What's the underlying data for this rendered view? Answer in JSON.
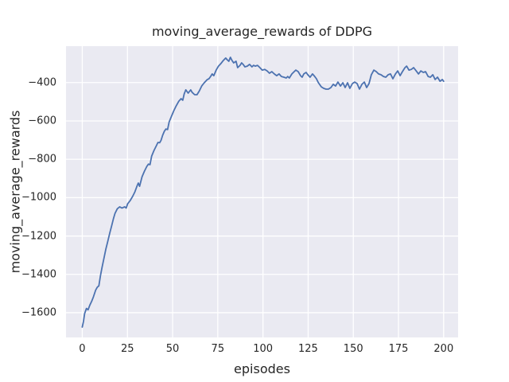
{
  "figure": {
    "background": "#ffffff"
  },
  "chart_data": {
    "type": "line",
    "title": "moving_average_rewards of DDPG",
    "xlabel": "episodes",
    "ylabel": "moving_average_rewards",
    "x_ticks": [
      0,
      25,
      50,
      75,
      100,
      125,
      150,
      175,
      200
    ],
    "y_ticks": [
      -400,
      -600,
      -800,
      -1000,
      -1200,
      -1400,
      -1600
    ],
    "xlim": [
      -9,
      208
    ],
    "ylim": [
      -1729,
      -210
    ],
    "grid": true,
    "legend": "none",
    "style": {
      "plot_bg": "#eaeaf2",
      "grid_color": "#ffffff",
      "line_color": "#4c72b0",
      "text_color": "#262626",
      "line_width": 1.8
    },
    "series": [
      {
        "name": "moving_average_rewards",
        "points": [
          [
            0,
            -1675
          ],
          [
            0.7,
            -1645
          ],
          [
            1.3,
            -1605
          ],
          [
            2.3,
            -1578
          ],
          [
            3.2,
            -1585
          ],
          [
            4.2,
            -1560
          ],
          [
            5.2,
            -1540
          ],
          [
            6.2,
            -1517
          ],
          [
            7.4,
            -1482
          ],
          [
            8.3,
            -1467
          ],
          [
            9.2,
            -1460
          ],
          [
            10.1,
            -1405
          ],
          [
            11,
            -1362
          ],
          [
            11.9,
            -1320
          ],
          [
            13,
            -1270
          ],
          [
            14.1,
            -1228
          ],
          [
            15.2,
            -1185
          ],
          [
            16.3,
            -1145
          ],
          [
            17.2,
            -1112
          ],
          [
            18.1,
            -1082
          ],
          [
            19.4,
            -1058
          ],
          [
            20.7,
            -1048
          ],
          [
            22,
            -1054
          ],
          [
            23.4,
            -1048
          ],
          [
            24.3,
            -1054
          ],
          [
            25.1,
            -1032
          ],
          [
            26.5,
            -1015
          ],
          [
            27.8,
            -995
          ],
          [
            29.1,
            -970
          ],
          [
            30.4,
            -937
          ],
          [
            31,
            -924
          ],
          [
            31.7,
            -941
          ],
          [
            33.1,
            -891
          ],
          [
            34.4,
            -862
          ],
          [
            35.7,
            -837
          ],
          [
            36.6,
            -825
          ],
          [
            37.5,
            -828
          ],
          [
            38.4,
            -783
          ],
          [
            39.7,
            -754
          ],
          [
            41,
            -729
          ],
          [
            41.9,
            -712
          ],
          [
            42.8,
            -714
          ],
          [
            43.6,
            -701
          ],
          [
            44.5,
            -675
          ],
          [
            45.4,
            -654
          ],
          [
            46.3,
            -642
          ],
          [
            47.2,
            -645
          ],
          [
            48.1,
            -605
          ],
          [
            49.4,
            -575
          ],
          [
            50.7,
            -546
          ],
          [
            52,
            -521
          ],
          [
            53.4,
            -497
          ],
          [
            54.7,
            -484
          ],
          [
            55.6,
            -492
          ],
          [
            56.4,
            -459
          ],
          [
            57.3,
            -438
          ],
          [
            58.6,
            -455
          ],
          [
            60,
            -438
          ],
          [
            60.8,
            -451
          ],
          [
            62.2,
            -463
          ],
          [
            63.5,
            -463
          ],
          [
            64.8,
            -443
          ],
          [
            66.1,
            -418
          ],
          [
            67.5,
            -401
          ],
          [
            68.3,
            -393
          ],
          [
            69.2,
            -384
          ],
          [
            70.1,
            -380
          ],
          [
            71,
            -368
          ],
          [
            71.9,
            -355
          ],
          [
            72.8,
            -364
          ],
          [
            74.1,
            -335
          ],
          [
            75.4,
            -314
          ],
          [
            76.7,
            -301
          ],
          [
            78,
            -285
          ],
          [
            79.4,
            -272
          ],
          [
            80.2,
            -281
          ],
          [
            81.1,
            -289
          ],
          [
            82,
            -268
          ],
          [
            82.9,
            -285
          ],
          [
            83.8,
            -297
          ],
          [
            85.1,
            -289
          ],
          [
            86,
            -322
          ],
          [
            87.3,
            -310
          ],
          [
            88.2,
            -297
          ],
          [
            89.1,
            -306
          ],
          [
            90,
            -318
          ],
          [
            91.3,
            -314
          ],
          [
            92.6,
            -305
          ],
          [
            93.9,
            -318
          ],
          [
            94.8,
            -310
          ],
          [
            95.7,
            -314
          ],
          [
            97,
            -310
          ],
          [
            98.3,
            -322
          ],
          [
            99.6,
            -335
          ],
          [
            101,
            -331
          ],
          [
            102.3,
            -339
          ],
          [
            103.6,
            -351
          ],
          [
            104.9,
            -343
          ],
          [
            106.3,
            -355
          ],
          [
            107.6,
            -364
          ],
          [
            108.9,
            -355
          ],
          [
            110.2,
            -368
          ],
          [
            111.6,
            -372
          ],
          [
            112.9,
            -376
          ],
          [
            113.7,
            -368
          ],
          [
            114.6,
            -376
          ],
          [
            116,
            -355
          ],
          [
            117.3,
            -343
          ],
          [
            118.2,
            -335
          ],
          [
            119.5,
            -343
          ],
          [
            120.8,
            -364
          ],
          [
            121.7,
            -372
          ],
          [
            122.6,
            -355
          ],
          [
            123.9,
            -347
          ],
          [
            124.8,
            -359
          ],
          [
            126.1,
            -372
          ],
          [
            127.4,
            -355
          ],
          [
            128.3,
            -364
          ],
          [
            129.6,
            -380
          ],
          [
            130.5,
            -397
          ],
          [
            131,
            -405
          ],
          [
            132.3,
            -422
          ],
          [
            133.6,
            -430
          ],
          [
            134.9,
            -434
          ],
          [
            136.2,
            -434
          ],
          [
            137.6,
            -426
          ],
          [
            138.9,
            -409
          ],
          [
            140.2,
            -418
          ],
          [
            141.5,
            -397
          ],
          [
            142.9,
            -418
          ],
          [
            144.2,
            -401
          ],
          [
            145.5,
            -426
          ],
          [
            146.8,
            -401
          ],
          [
            148.1,
            -430
          ],
          [
            149.5,
            -405
          ],
          [
            150.8,
            -397
          ],
          [
            152.1,
            -405
          ],
          [
            153.4,
            -434
          ],
          [
            154.8,
            -409
          ],
          [
            156.1,
            -397
          ],
          [
            157.4,
            -426
          ],
          [
            158.7,
            -405
          ],
          [
            160,
            -359
          ],
          [
            161.4,
            -335
          ],
          [
            162.7,
            -343
          ],
          [
            164,
            -355
          ],
          [
            165.3,
            -359
          ],
          [
            166.7,
            -368
          ],
          [
            168,
            -372
          ],
          [
            169.3,
            -359
          ],
          [
            170.6,
            -355
          ],
          [
            171.9,
            -380
          ],
          [
            173.3,
            -355
          ],
          [
            174.6,
            -339
          ],
          [
            175.9,
            -364
          ],
          [
            177.2,
            -343
          ],
          [
            178.6,
            -322
          ],
          [
            179.5,
            -314
          ],
          [
            180.8,
            -335
          ],
          [
            182.1,
            -331
          ],
          [
            183.4,
            -322
          ],
          [
            184.8,
            -339
          ],
          [
            186.1,
            -355
          ],
          [
            187.4,
            -339
          ],
          [
            188.7,
            -347
          ],
          [
            190,
            -343
          ],
          [
            191.4,
            -368
          ],
          [
            192.7,
            -372
          ],
          [
            194,
            -359
          ],
          [
            195.3,
            -384
          ],
          [
            196.6,
            -372
          ],
          [
            198,
            -393
          ],
          [
            199.3,
            -384
          ],
          [
            200,
            -393
          ]
        ]
      }
    ]
  }
}
